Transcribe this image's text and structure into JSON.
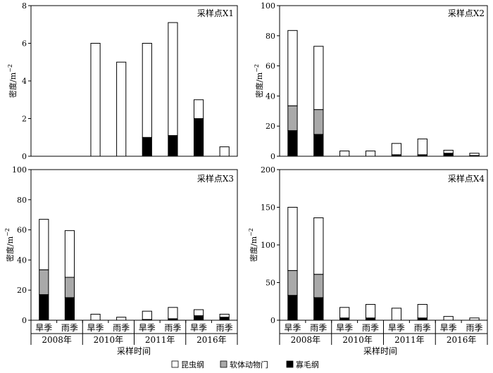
{
  "chart_data": [
    {
      "type": "bar",
      "title": "采样点X1",
      "ylabel": "密度/m",
      "ylabel_sup": "−2",
      "ylim": [
        0,
        8
      ],
      "yticks": [
        0,
        2,
        4,
        6,
        8
      ],
      "categories": [
        "旱季",
        "雨季",
        "旱季",
        "雨季",
        "旱季",
        "雨季",
        "旱季",
        "雨季"
      ],
      "series": [
        {
          "name": "寡毛纲",
          "values": [
            0,
            0,
            0,
            0,
            1.0,
            1.1,
            2.0,
            0
          ]
        },
        {
          "name": "软体动物门",
          "values": [
            0,
            0,
            0,
            0,
            0,
            0,
            0,
            0
          ]
        },
        {
          "name": "昆虫纲",
          "values": [
            0,
            0,
            6.0,
            5.0,
            5.0,
            6.0,
            1.0,
            0.5
          ]
        }
      ]
    },
    {
      "type": "bar",
      "title": "采样点X2",
      "ylabel": "密度/m",
      "ylabel_sup": "−2",
      "ylim": [
        0,
        100
      ],
      "yticks": [
        0,
        20,
        40,
        60,
        80,
        100
      ],
      "categories": [
        "旱季",
        "雨季",
        "旱季",
        "雨季",
        "旱季",
        "雨季",
        "旱季",
        "雨季"
      ],
      "series": [
        {
          "name": "寡毛纲",
          "values": [
            17,
            14.5,
            0,
            0,
            1.0,
            1.0,
            2.0,
            0.5
          ]
        },
        {
          "name": "软体动物门",
          "values": [
            16.5,
            16.5,
            0,
            0,
            0,
            0,
            0,
            0
          ]
        },
        {
          "name": "昆虫纲",
          "values": [
            50,
            42,
            3.5,
            3.5,
            7.5,
            10.5,
            2.0,
            1.5
          ]
        }
      ]
    },
    {
      "type": "bar",
      "title": "采样点X3",
      "ylabel": "密度/m",
      "ylabel_sup": "−2",
      "ylim": [
        0,
        100
      ],
      "yticks": [
        0,
        20,
        40,
        60,
        80,
        100
      ],
      "categories": [
        "旱季",
        "雨季",
        "旱季",
        "雨季",
        "旱季",
        "雨季",
        "旱季",
        "雨季"
      ],
      "series": [
        {
          "name": "寡毛纲",
          "values": [
            17,
            15,
            0,
            0,
            0.5,
            1.0,
            3.0,
            2.0
          ]
        },
        {
          "name": "软体动物门",
          "values": [
            16.5,
            13.5,
            0,
            0,
            0,
            0,
            0,
            0
          ]
        },
        {
          "name": "昆虫纲",
          "values": [
            33.5,
            31,
            4.0,
            2.0,
            5.5,
            7.5,
            4.0,
            2.0
          ]
        }
      ]
    },
    {
      "type": "bar",
      "title": "采样点X4",
      "ylabel": "密度/m",
      "ylabel_sup": "−2",
      "ylim": [
        0,
        200
      ],
      "yticks": [
        0,
        50,
        100,
        150,
        200
      ],
      "categories": [
        "旱季",
        "雨季",
        "旱季",
        "雨季",
        "旱季",
        "雨季",
        "旱季",
        "雨季"
      ],
      "series": [
        {
          "name": "寡毛纲",
          "values": [
            33,
            30,
            3,
            3,
            0,
            3,
            0,
            0
          ]
        },
        {
          "name": "软体动物门",
          "values": [
            33,
            31,
            0,
            0,
            0,
            0,
            0,
            0
          ]
        },
        {
          "name": "昆虫纲",
          "values": [
            84,
            75,
            14,
            18,
            16,
            18,
            5,
            3
          ]
        }
      ]
    }
  ],
  "year_groups": [
    "2008年",
    "2010年",
    "2011年",
    "2016年"
  ],
  "xlabel": "采样时间",
  "legend": [
    {
      "label": "昆虫纲",
      "color": "#ffffff"
    },
    {
      "label": "软体动物门",
      "color": "#a9a9a9"
    },
    {
      "label": "寡毛纲",
      "color": "#000000"
    }
  ],
  "colors": {
    "insect": "#ffffff",
    "mollusc": "#a9a9a9",
    "oligo": "#000000"
  }
}
